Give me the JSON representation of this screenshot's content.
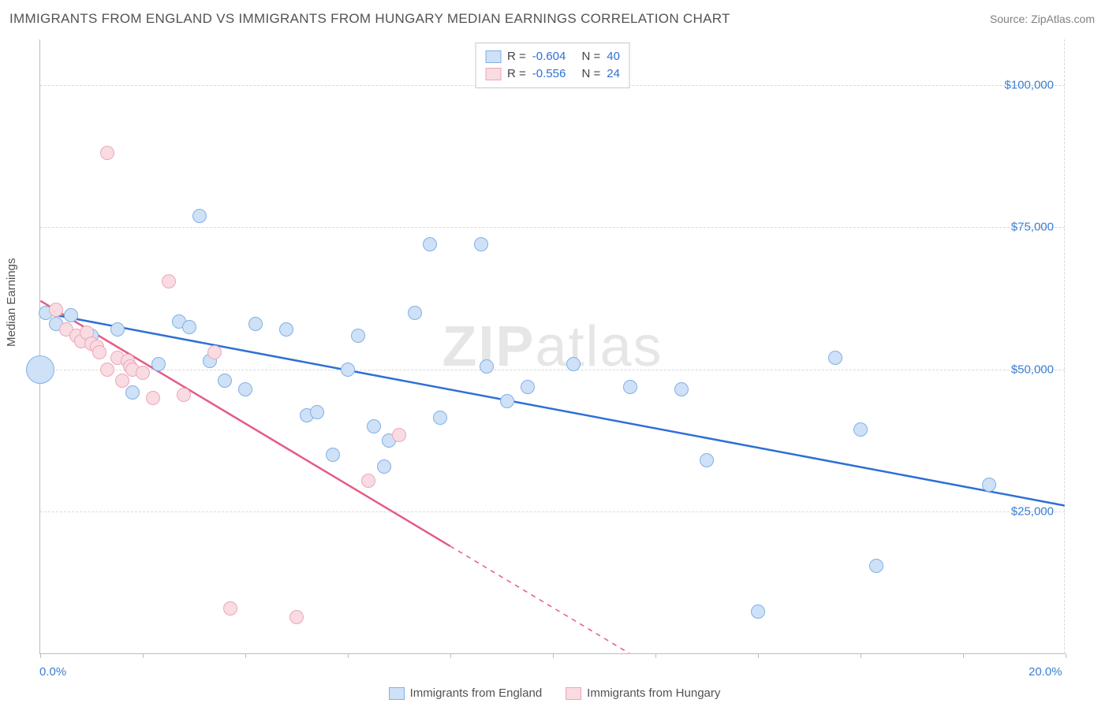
{
  "title": "IMMIGRANTS FROM ENGLAND VS IMMIGRANTS FROM HUNGARY MEDIAN EARNINGS CORRELATION CHART",
  "source": "Source: ZipAtlas.com",
  "watermark": {
    "bold": "ZIP",
    "rest": "atlas"
  },
  "ylabel": "Median Earnings",
  "chart": {
    "type": "scatter",
    "background_color": "#ffffff",
    "grid_color": "#d9d9d9",
    "axis_color": "#bcbcbc",
    "tick_label_color": "#3a7ed1",
    "xlim": [
      0,
      20
    ],
    "ylim": [
      0,
      108000
    ],
    "xticks": [
      0,
      2,
      4,
      6,
      8,
      10,
      12,
      14,
      16,
      18,
      20
    ],
    "xtick_labels_shown": {
      "0": "0.0%",
      "20": "20.0%"
    },
    "yticks": [
      25000,
      50000,
      75000,
      100000
    ],
    "ytick_labels": [
      "$25,000",
      "$50,000",
      "$75,000",
      "$100,000"
    ],
    "point_radius": 9,
    "point_border_width": 1.5,
    "trend_width": 2.5
  },
  "series": [
    {
      "key": "england",
      "label": "Immigrants from England",
      "fill": "#cfe1f7",
      "stroke": "#80b0e6",
      "line_color": "#2e6fd6",
      "R": "-0.604",
      "N": "40",
      "trend": {
        "x1": 0,
        "y1": 60000,
        "x2": 20,
        "y2": 26000,
        "dashed_from": null
      },
      "points": [
        [
          0.0,
          50000,
          18
        ],
        [
          0.1,
          60000,
          9
        ],
        [
          0.3,
          58000,
          9
        ],
        [
          0.6,
          59500,
          9
        ],
        [
          1.0,
          56000,
          9
        ],
        [
          1.5,
          57000,
          9
        ],
        [
          1.8,
          46000,
          9
        ],
        [
          2.3,
          51000,
          9
        ],
        [
          2.7,
          58500,
          9
        ],
        [
          2.9,
          57500,
          9
        ],
        [
          3.1,
          77000,
          9
        ],
        [
          3.3,
          51500,
          9
        ],
        [
          3.6,
          48000,
          9
        ],
        [
          4.0,
          46500,
          9
        ],
        [
          4.2,
          58000,
          9
        ],
        [
          4.8,
          57000,
          9
        ],
        [
          5.2,
          42000,
          9
        ],
        [
          5.4,
          42500,
          9
        ],
        [
          5.7,
          35000,
          9
        ],
        [
          6.0,
          50000,
          9
        ],
        [
          6.2,
          56000,
          9
        ],
        [
          6.5,
          40000,
          9
        ],
        [
          6.7,
          33000,
          9
        ],
        [
          6.8,
          37500,
          9
        ],
        [
          7.3,
          60000,
          9
        ],
        [
          7.6,
          72000,
          9
        ],
        [
          7.8,
          41500,
          9
        ],
        [
          8.6,
          72000,
          9
        ],
        [
          8.7,
          50500,
          9
        ],
        [
          9.1,
          44500,
          9
        ],
        [
          9.5,
          47000,
          9
        ],
        [
          10.4,
          51000,
          9
        ],
        [
          11.5,
          47000,
          9
        ],
        [
          12.5,
          46500,
          9
        ],
        [
          13.0,
          34000,
          9
        ],
        [
          14.0,
          7500,
          9
        ],
        [
          15.5,
          52000,
          9
        ],
        [
          16.0,
          39500,
          9
        ],
        [
          16.3,
          15500,
          9
        ],
        [
          18.5,
          29800,
          9
        ]
      ]
    },
    {
      "key": "hungary",
      "label": "Immigrants from Hungary",
      "fill": "#f9dbe2",
      "stroke": "#eda6ba",
      "line_color": "#e55b85",
      "R": "-0.556",
      "N": "24",
      "trend": {
        "x1": 0,
        "y1": 62000,
        "x2": 11.5,
        "y2": 0,
        "dashed_from": 8.0
      },
      "points": [
        [
          0.3,
          60500,
          9
        ],
        [
          0.5,
          57000,
          9
        ],
        [
          0.7,
          56000,
          9
        ],
        [
          0.8,
          55000,
          9
        ],
        [
          0.9,
          56500,
          9
        ],
        [
          1.0,
          54500,
          9
        ],
        [
          1.1,
          54000,
          9
        ],
        [
          1.15,
          53000,
          9
        ],
        [
          1.3,
          50000,
          9
        ],
        [
          1.3,
          88000,
          9
        ],
        [
          1.5,
          52000,
          9
        ],
        [
          1.6,
          48000,
          9
        ],
        [
          1.7,
          51500,
          9
        ],
        [
          1.75,
          50500,
          9
        ],
        [
          1.8,
          50000,
          9
        ],
        [
          2.0,
          49500,
          9
        ],
        [
          2.2,
          45000,
          9
        ],
        [
          2.5,
          65500,
          9
        ],
        [
          2.8,
          45500,
          9
        ],
        [
          3.4,
          53000,
          9
        ],
        [
          3.7,
          8000,
          9
        ],
        [
          5.0,
          6500,
          9
        ],
        [
          6.4,
          30500,
          9
        ],
        [
          7.0,
          38500,
          9
        ]
      ]
    }
  ],
  "legend_top_labels": {
    "R_prefix": "R =",
    "N_prefix": "N ="
  },
  "bottom_legend_label_england": "Immigrants from England",
  "bottom_legend_label_hungary": "Immigrants from Hungary"
}
